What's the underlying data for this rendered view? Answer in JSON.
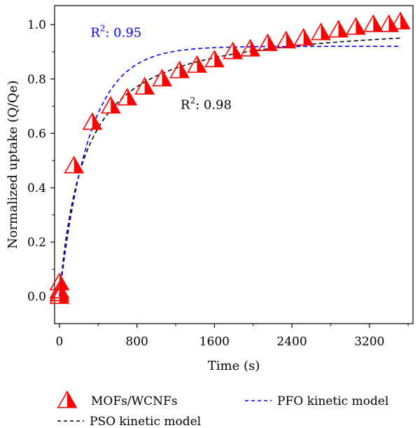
{
  "chart_data": {
    "type": "scatter",
    "xlabel": "Time (s)",
    "ylabel": "Normalized uptake (Q/Qe)",
    "xlim": [
      -50,
      3650
    ],
    "ylim": [
      -0.1,
      1.07
    ],
    "xticks": [
      0,
      800,
      1600,
      2400,
      3200
    ],
    "yticks": [
      0.0,
      0.2,
      0.4,
      0.6,
      0.8,
      1.0
    ],
    "xtick_labels": [
      "0",
      "800",
      "1600",
      "2400",
      "3200"
    ],
    "ytick_labels": [
      "0.0",
      "0.2",
      "0.4",
      "0.6",
      "0.8",
      "1.0"
    ],
    "grid": false,
    "legend_position": "bottom",
    "series": [
      {
        "name": "MOFs/WCNFs",
        "kind": "markers",
        "color": "#ff0000",
        "marker": "half-filled-triangle",
        "x": [
          0,
          0,
          0,
          0,
          150,
          340,
          530,
          700,
          880,
          1060,
          1240,
          1420,
          1600,
          1790,
          1970,
          2150,
          2340,
          2520,
          2700,
          2880,
          3060,
          3240,
          3400,
          3520
        ],
        "y": [
          0.0,
          0.01,
          0.02,
          0.05,
          0.48,
          0.64,
          0.7,
          0.73,
          0.77,
          0.8,
          0.83,
          0.85,
          0.87,
          0.9,
          0.91,
          0.93,
          0.94,
          0.95,
          0.97,
          0.98,
          0.99,
          1.0,
          1.0,
          1.01
        ]
      },
      {
        "name": "PSO kinetic model",
        "kind": "dashed-line",
        "color": "#000000",
        "model": "pso",
        "qe": 1.02,
        "k2": 0.0038
      },
      {
        "name": "PFO kinetic model",
        "kind": "dashed-line",
        "color": "#0000ff",
        "model": "pfo",
        "qe": 0.92,
        "k1": 0.0033
      }
    ],
    "annotations": [
      {
        "base": "R",
        "sup": "2",
        "text": ": 0.95",
        "color": "#0000ff"
      },
      {
        "base": "R",
        "sup": "2",
        "text": ": 0.98",
        "color": "#000000"
      }
    ]
  }
}
